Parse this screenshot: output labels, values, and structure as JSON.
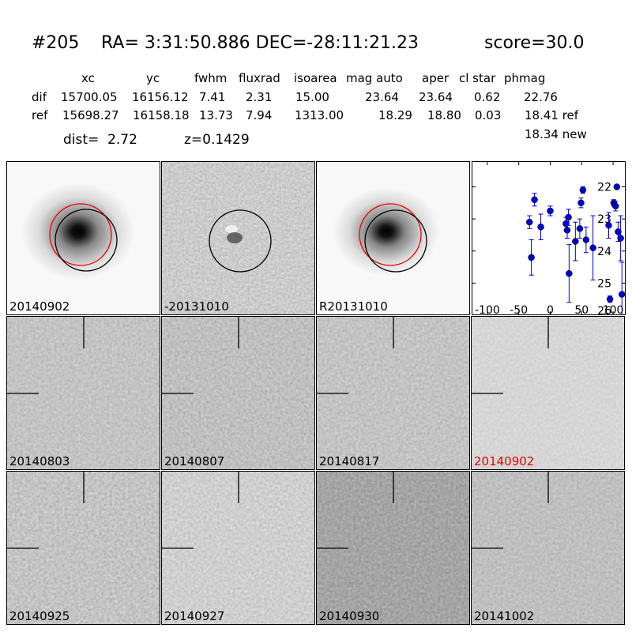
{
  "header": {
    "id": "#205",
    "ra_dec": "RA= 3:31:50.886 DEC=-28:11:21.23",
    "score": "score=30.0"
  },
  "table": {
    "columns": [
      "xc",
      "yc",
      "fwhm",
      "fluxrad",
      "isoarea",
      "mag auto",
      "aper",
      "cl star",
      "phmag"
    ],
    "rows": [
      {
        "label": "dif",
        "values": [
          "15700.05",
          "16156.12",
          "7.41",
          "2.31",
          "15.00",
          "23.64",
          "23.64",
          "0.62",
          "22.76"
        ]
      },
      {
        "label": "ref",
        "values": [
          "15698.27",
          "16158.18",
          "13.73",
          "7.94",
          "1313.00",
          "18.29",
          "18.80",
          "0.03",
          "18.41 ref"
        ]
      }
    ],
    "extra_phmag": "18.34 new"
  },
  "meta": {
    "dist": "dist=  2.72",
    "z": "z=0.1429"
  },
  "top_panels": [
    {
      "label": "20140902"
    },
    {
      "label": "-20131010"
    },
    {
      "label": "R20131010"
    }
  ],
  "stamp_panels": [
    {
      "label": "20140803",
      "highlight": false
    },
    {
      "label": "20140807",
      "highlight": false
    },
    {
      "label": "20140817",
      "highlight": false
    },
    {
      "label": "20140902",
      "highlight": true
    },
    {
      "label": "20140925",
      "highlight": false
    },
    {
      "label": "20140927",
      "highlight": false
    },
    {
      "label": "20140930",
      "highlight": false
    },
    {
      "label": "20141002",
      "highlight": false
    }
  ],
  "chart_data": {
    "type": "scatter",
    "x_ticks": [
      -100,
      -50,
      0,
      50,
      100
    ],
    "y_ticks": [
      22,
      23,
      24,
      25,
      26
    ],
    "xlim": [
      -125,
      120
    ],
    "ylim": [
      26,
      21.2
    ],
    "color": "#0000cc",
    "points": [
      {
        "x": -33,
        "y": 23.1,
        "err": 0.2
      },
      {
        "x": -30,
        "y": 24.2,
        "err": 0.55
      },
      {
        "x": -25,
        "y": 22.4,
        "err": 0.2
      },
      {
        "x": -15,
        "y": 23.25,
        "err": 0.4
      },
      {
        "x": 0,
        "y": 22.75,
        "err": 0.15
      },
      {
        "x": 25,
        "y": 23.15,
        "err": 0.2
      },
      {
        "x": 27,
        "y": 23.35,
        "err": 0.25
      },
      {
        "x": 29,
        "y": 22.95,
        "err": 0.25
      },
      {
        "x": 30,
        "y": 24.7,
        "err": 0.9
      },
      {
        "x": 40,
        "y": 23.7,
        "err": 0.6
      },
      {
        "x": 47,
        "y": 23.3,
        "err": 0.3
      },
      {
        "x": 49,
        "y": 22.5,
        "err": 0.15
      },
      {
        "x": 52,
        "y": 22.1,
        "err": 0.1
      },
      {
        "x": 57,
        "y": 23.65,
        "err": 0.4
      },
      {
        "x": 68,
        "y": 23.9,
        "err": 1.0
      },
      {
        "x": 93,
        "y": 23.2,
        "err": 0.4
      },
      {
        "x": 95,
        "y": 25.5,
        "err": 0.1
      },
      {
        "x": 101,
        "y": 22.5,
        "err": 0.1
      },
      {
        "x": 104,
        "y": 22.6,
        "err": 0.15
      },
      {
        "x": 106,
        "y": 22.0,
        "err": 0.05
      },
      {
        "x": 108,
        "y": 23.4,
        "err": 0.3
      },
      {
        "x": 112,
        "y": 23.6,
        "err": 0.7
      },
      {
        "x": 114,
        "y": 25.35,
        "err": 1.0
      }
    ]
  }
}
